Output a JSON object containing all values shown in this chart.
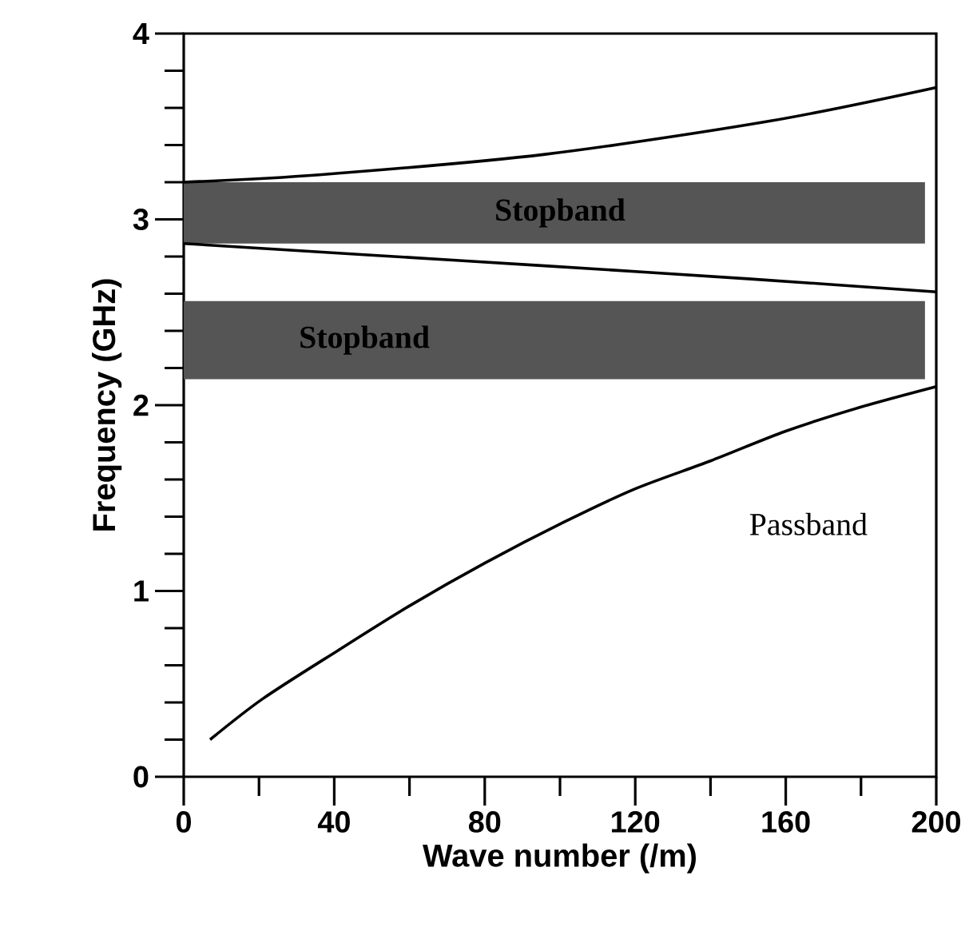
{
  "chart_data": {
    "type": "line",
    "xlabel": "Wave number (/m)",
    "ylabel": "Frequency (GHz)",
    "xlim": [
      0,
      200
    ],
    "ylim": [
      0,
      4
    ],
    "xticks": [
      0,
      {
        "value": 20,
        "label": null
      },
      40,
      {
        "value": 60,
        "label": null
      },
      80,
      {
        "value": 100,
        "label": null
      },
      120,
      {
        "value": 140,
        "label": null
      },
      160,
      {
        "value": 180,
        "label": null
      },
      200
    ],
    "yticks": [
      0,
      {
        "value": 0.2,
        "label": null
      },
      {
        "value": 0.4,
        "label": null
      },
      {
        "value": 0.6,
        "label": null
      },
      {
        "value": 0.8,
        "label": null
      },
      1,
      {
        "value": 1.2,
        "label": null
      },
      {
        "value": 1.4,
        "label": null
      },
      {
        "value": 1.6,
        "label": null
      },
      {
        "value": 1.8,
        "label": null
      },
      2,
      {
        "value": 2.2,
        "label": null
      },
      {
        "value": 2.4,
        "label": null
      },
      {
        "value": 2.6,
        "label": null
      },
      {
        "value": 2.8,
        "label": null
      },
      3,
      {
        "value": 3.2,
        "label": null
      },
      {
        "value": 3.4,
        "label": null
      },
      {
        "value": 3.6,
        "label": null
      },
      {
        "value": 3.8,
        "label": null
      },
      4
    ],
    "series": [
      {
        "color": "#000000",
        "x": [
          7,
          21,
          41,
          60,
          80,
          101,
          120,
          140,
          160,
          180,
          200
        ],
        "values": [
          0.2,
          0.42,
          0.68,
          0.92,
          1.15,
          1.37,
          1.55,
          1.7,
          1.86,
          1.99,
          2.1
        ]
      },
      {
        "color": "#000000",
        "x": [
          0,
          48,
          96,
          150,
          200
        ],
        "values": [
          2.87,
          2.81,
          2.75,
          2.68,
          2.61
        ]
      },
      {
        "color": "#000000",
        "x": [
          0,
          36,
          96,
          156,
          200
        ],
        "values": [
          3.2,
          3.24,
          3.35,
          3.53,
          3.71
        ]
      }
    ],
    "bands": [
      {
        "axis": "y",
        "from": 2.87,
        "to": 3.2,
        "label": "Stopband",
        "color": "#555555"
      },
      {
        "axis": "y",
        "from": 2.14,
        "to": 2.56,
        "label": "Stopband",
        "color": "#555555"
      }
    ],
    "annotations": [
      "Passband"
    ],
    "grid": false,
    "marker": "none",
    "line_style": "solid"
  }
}
